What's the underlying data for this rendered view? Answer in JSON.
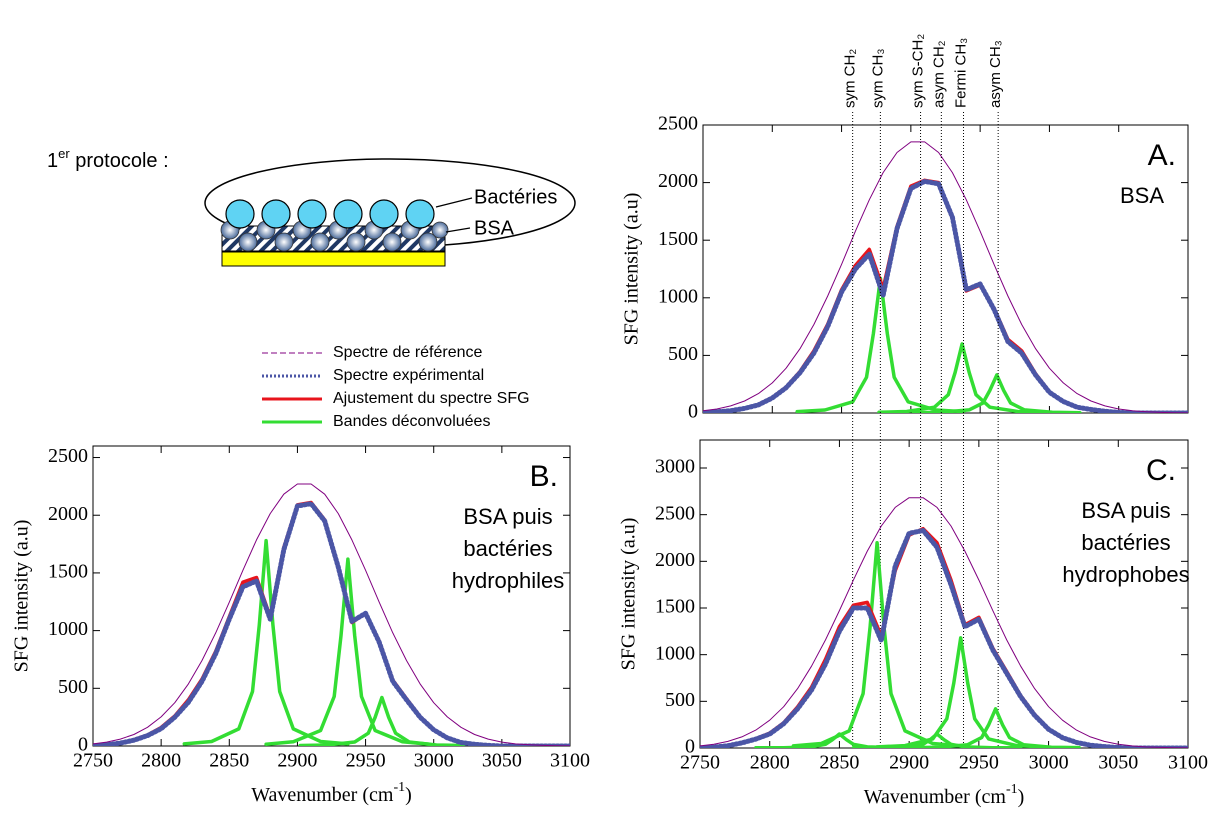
{
  "diagram": {
    "protocol": [
      "1",
      "er",
      " protocole :"
    ],
    "labels": [
      "Bactéries",
      "BSA"
    ]
  },
  "chart_data": [
    {
      "type": "line",
      "label": "A.",
      "sublabel": [
        "BSA"
      ],
      "ylabel": "SFG intensity  (a.u)",
      "xlim": [
        2750,
        3100
      ],
      "xticks": [
        2750,
        2800,
        2850,
        2900,
        2950,
        3000,
        3050,
        3100
      ],
      "show_xtick_labels": false,
      "ylim": [
        0,
        2500
      ],
      "yticks": [
        0,
        500,
        1000,
        1500,
        2000,
        2500
      ],
      "x": [
        2750,
        2760,
        2770,
        2780,
        2790,
        2800,
        2810,
        2820,
        2830,
        2840,
        2850,
        2860,
        2870,
        2880,
        2890,
        2900,
        2910,
        2920,
        2930,
        2940,
        2950,
        2960,
        2970,
        2980,
        2990,
        3000,
        3010,
        3020,
        3030,
        3040,
        3050,
        3060,
        3070,
        3080,
        3090,
        3100
      ],
      "series": [
        {
          "name": "Spectre de référence",
          "color": "#800080",
          "style": "thin",
          "values": [
            19,
            35,
            62,
            104,
            168,
            261,
            389,
            558,
            768,
            1016,
            1291,
            1578,
            1851,
            2087,
            2261,
            2353,
            2353,
            2261,
            2087,
            1851,
            1578,
            1291,
            1016,
            768,
            558,
            389,
            261,
            168,
            104,
            62,
            35,
            19,
            10,
            5,
            2,
            1
          ]
        },
        {
          "name": "Spectre expérimental",
          "color": "#4b56a6",
          "style": "dotted",
          "values": [
            0,
            10,
            20,
            40,
            70,
            130,
            220,
            350,
            520,
            750,
            1050,
            1250,
            1380,
            1020,
            1600,
            1950,
            2010,
            1990,
            1700,
            1070,
            1120,
            900,
            620,
            520,
            330,
            180,
            100,
            50,
            30,
            15,
            5,
            0,
            0,
            0,
            0,
            0
          ]
        },
        {
          "name": "Ajustement du spectre SFG",
          "color": "#e8141c",
          "style": "solid",
          "values": [
            0,
            10,
            20,
            40,
            75,
            135,
            225,
            360,
            540,
            770,
            1070,
            1280,
            1420,
            1080,
            1620,
            1970,
            2020,
            2000,
            1690,
            1060,
            1110,
            910,
            640,
            540,
            340,
            185,
            100,
            50,
            30,
            15,
            5,
            0,
            0,
            0,
            0,
            0
          ]
        },
        {
          "name": "Bandes déconvoluées",
          "color": "#33dd33",
          "style": "solid",
          "x": [
            2818,
            2838,
            2858,
            2868,
            2873,
            2878,
            2883,
            2888,
            2898,
            2918,
            2938
          ],
          "values": [
            12,
            26,
            97,
            310,
            690,
            1170,
            690,
            310,
            97,
            26,
            12
          ]
        },
        {
          "color": "#33dd33",
          "style": "solid",
          "x": [
            2877,
            2897,
            2917,
            2927,
            2932,
            2937,
            2942,
            2947,
            2957,
            2977,
            2997
          ],
          "values": [
            6,
            13,
            50,
            159,
            354,
            600,
            354,
            159,
            50,
            13,
            6
          ]
        },
        {
          "color": "#33dd33",
          "style": "solid",
          "x": [
            2902,
            2922,
            2942,
            2952,
            2957,
            2962,
            2967,
            2972,
            2982,
            3002,
            3022
          ],
          "values": [
            3,
            7,
            27,
            87,
            195,
            330,
            195,
            87,
            27,
            7,
            3
          ]
        }
      ],
      "vlines": [
        {
          "x": 2858,
          "label": "sym CH₂"
        },
        {
          "x": 2878,
          "label": "sym CH₃"
        },
        {
          "x": 2907,
          "label": "sym S-CH₂"
        },
        {
          "x": 2922,
          "label": "asym CH₂"
        },
        {
          "x": 2938,
          "label": "Fermi CH₃"
        },
        {
          "x": 2963,
          "label": "asym CH₃"
        }
      ]
    },
    {
      "type": "line",
      "label": "B.",
      "sublabel": [
        "BSA puis",
        "bactéries",
        "hydrophiles"
      ],
      "ylabel": "SFG intensity  (a.u)",
      "xlabel": [
        "Wavenumber (cm",
        "-1",
        ")"
      ],
      "xlim": [
        2750,
        3100
      ],
      "xticks": [
        2750,
        2800,
        2850,
        2900,
        2950,
        3000,
        3050,
        3100
      ],
      "show_xtick_labels": true,
      "ylim": [
        0,
        2600
      ],
      "yticks": [
        0,
        500,
        1000,
        1500,
        2000,
        2500
      ],
      "x": [
        2750,
        2760,
        2770,
        2780,
        2790,
        2800,
        2810,
        2820,
        2830,
        2840,
        2850,
        2860,
        2870,
        2880,
        2890,
        2900,
        2910,
        2920,
        2930,
        2940,
        2950,
        2960,
        2970,
        2980,
        2990,
        3000,
        3010,
        3020,
        3030,
        3040,
        3050,
        3060,
        3070,
        3080,
        3090,
        3100
      ],
      "series": [
        {
          "color": "#800080",
          "style": "thin",
          "values": [
            18,
            34,
            60,
            100,
            162,
            252,
            375,
            538,
            741,
            980,
            1246,
            1523,
            1786,
            2014,
            2182,
            2271,
            2271,
            2182,
            2014,
            1786,
            1523,
            1246,
            980,
            741,
            538,
            375,
            252,
            162,
            100,
            60,
            34,
            18,
            10,
            5,
            2,
            1
          ]
        },
        {
          "color": "#4b56a6",
          "style": "dotted",
          "values": [
            0,
            10,
            25,
            50,
            90,
            150,
            250,
            380,
            560,
            800,
            1100,
            1380,
            1430,
            1100,
            1700,
            2080,
            2100,
            1950,
            1550,
            1080,
            1150,
            900,
            560,
            400,
            250,
            140,
            70,
            30,
            15,
            5,
            0,
            0,
            0,
            0,
            0,
            0
          ]
        },
        {
          "color": "#e8141c",
          "style": "solid",
          "values": [
            0,
            10,
            25,
            55,
            95,
            160,
            260,
            400,
            580,
            820,
            1120,
            1420,
            1460,
            1120,
            1720,
            2090,
            2110,
            1960,
            1540,
            1070,
            1150,
            910,
            570,
            410,
            255,
            140,
            70,
            30,
            15,
            5,
            0,
            0,
            0,
            0,
            0,
            0
          ]
        },
        {
          "color": "#33dd33",
          "style": "solid",
          "x": [
            2817,
            2837,
            2857,
            2867,
            2872,
            2877,
            2882,
            2887,
            2897,
            2917,
            2937
          ],
          "values": [
            18,
            39,
            148,
            472,
            1050,
            1780,
            1050,
            472,
            148,
            39,
            18
          ]
        },
        {
          "color": "#33dd33",
          "style": "solid",
          "x": [
            2877,
            2897,
            2917,
            2927,
            2932,
            2937,
            2942,
            2947,
            2957,
            2977,
            2997
          ],
          "values": [
            16,
            36,
            134,
            429,
            956,
            1620,
            956,
            429,
            134,
            36,
            16
          ]
        },
        {
          "color": "#33dd33",
          "style": "solid",
          "x": [
            2902,
            2922,
            2942,
            2952,
            2957,
            2962,
            2967,
            2972,
            2982,
            3002,
            3022
          ],
          "values": [
            4,
            9,
            35,
            111,
            248,
            420,
            248,
            111,
            35,
            9,
            4
          ]
        }
      ]
    },
    {
      "type": "line",
      "label": "C.",
      "sublabel": [
        "BSA puis",
        "bactéries",
        "hydrophobes"
      ],
      "ylabel": "SFG intensity  (a.u)",
      "xlabel": [
        "Wavenumber (cm",
        "-1",
        ")"
      ],
      "xlim": [
        2750,
        3100
      ],
      "xticks": [
        2750,
        2800,
        2850,
        2900,
        2950,
        3000,
        3050,
        3100
      ],
      "show_xtick_labels": true,
      "ylim": [
        0,
        3300
      ],
      "yticks": [
        0,
        500,
        1000,
        1500,
        2000,
        2500,
        3000
      ],
      "x": [
        2750,
        2760,
        2770,
        2780,
        2790,
        2800,
        2810,
        2820,
        2830,
        2840,
        2850,
        2860,
        2870,
        2880,
        2890,
        2900,
        2910,
        2920,
        2930,
        2940,
        2950,
        2960,
        2970,
        2980,
        2990,
        3000,
        3010,
        3020,
        3030,
        3040,
        3050,
        3060,
        3070,
        3080,
        3090,
        3100
      ],
      "series": [
        {
          "color": "#800080",
          "style": "thin",
          "values": [
            22,
            40,
            71,
            119,
            192,
            298,
            443,
            636,
            876,
            1158,
            1472,
            1799,
            2110,
            2379,
            2578,
            2682,
            2682,
            2578,
            2379,
            2110,
            1799,
            1472,
            1158,
            876,
            636,
            443,
            298,
            192,
            119,
            71,
            40,
            22,
            11,
            6,
            2,
            1
          ]
        },
        {
          "color": "#4b56a6",
          "style": "dotted",
          "values": [
            0,
            10,
            25,
            55,
            95,
            150,
            260,
            420,
            620,
            900,
            1250,
            1500,
            1500,
            1150,
            1950,
            2300,
            2330,
            2150,
            1750,
            1300,
            1380,
            1050,
            800,
            550,
            350,
            200,
            110,
            60,
            30,
            15,
            5,
            0,
            0,
            0,
            0,
            0
          ]
        },
        {
          "color": "#e8141c",
          "style": "solid",
          "values": [
            0,
            10,
            25,
            55,
            100,
            160,
            270,
            440,
            650,
            950,
            1300,
            1530,
            1560,
            1200,
            1900,
            2280,
            2350,
            2200,
            1800,
            1320,
            1400,
            1070,
            820,
            560,
            360,
            205,
            110,
            60,
            30,
            15,
            5,
            0,
            0,
            0,
            0,
            0
          ]
        },
        {
          "color": "#33dd33",
          "style": "solid",
          "x": [
            2790,
            2810,
            2830,
            2840,
            2845,
            2850,
            2855,
            2860,
            2870,
            2890,
            2910
          ],
          "values": [
            2,
            3,
            12,
            40,
            89,
            150,
            89,
            40,
            12,
            3,
            2
          ]
        },
        {
          "color": "#33dd33",
          "style": "solid",
          "x": [
            2817,
            2837,
            2857,
            2867,
            2872,
            2877,
            2882,
            2887,
            2897,
            2917,
            2937
          ],
          "values": [
            22,
            48,
            183,
            583,
            1298,
            2200,
            1298,
            583,
            183,
            48,
            22
          ]
        },
        {
          "color": "#33dd33",
          "style": "solid",
          "x": [
            2860,
            2880,
            2900,
            2910,
            2915,
            2920,
            2925,
            2930,
            2940,
            2960,
            2980
          ],
          "values": [
            2,
            3,
            12,
            40,
            89,
            150,
            89,
            40,
            12,
            3,
            2
          ]
        },
        {
          "color": "#33dd33",
          "style": "solid",
          "x": [
            2877,
            2897,
            2917,
            2927,
            2932,
            2937,
            2942,
            2947,
            2957,
            2977,
            2997
          ],
          "values": [
            12,
            26,
            98,
            313,
            696,
            1180,
            696,
            313,
            98,
            26,
            12
          ]
        },
        {
          "color": "#33dd33",
          "style": "solid",
          "x": [
            2902,
            2922,
            2942,
            2952,
            2957,
            2962,
            2967,
            2972,
            2982,
            3002,
            3022
          ],
          "values": [
            4,
            9,
            35,
            111,
            248,
            420,
            248,
            111,
            35,
            9,
            4
          ]
        }
      ]
    }
  ]
}
